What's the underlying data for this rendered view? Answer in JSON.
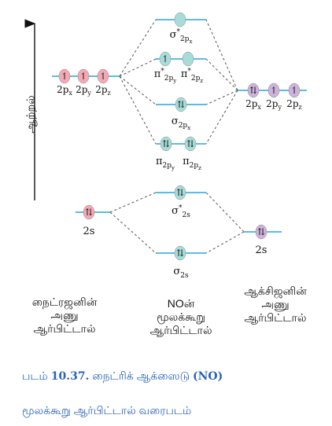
{
  "axis": {
    "label": "ஆற்றல்"
  },
  "nitrogen": {
    "title_lines": [
      "நைட்ரஜனின்",
      "அணு",
      "ஆர்பிட்டால்"
    ],
    "p_orbitals": [
      {
        "label": "2p",
        "sub": "x",
        "electrons": "↿"
      },
      {
        "label": "2p",
        "sub": "y",
        "electrons": "↿"
      },
      {
        "label": "2p",
        "sub": "z",
        "electrons": "↿"
      }
    ],
    "s_orbital": {
      "label": "2s",
      "electrons": "⇅"
    }
  },
  "oxygen": {
    "title_lines": [
      "ஆக்சிஜனின்",
      "அணு",
      "ஆர்பிட்டால்"
    ],
    "p_orbitals": [
      {
        "label": "2p",
        "sub": "x",
        "electrons": "⇅"
      },
      {
        "label": "2p",
        "sub": "y",
        "electrons": "↿"
      },
      {
        "label": "2p",
        "sub": "z",
        "electrons": "↿"
      }
    ],
    "s_orbital": {
      "label": "2s",
      "electrons": "⇅"
    }
  },
  "molecule": {
    "title_lines": [
      "NOன்",
      "மூலக்கூறு",
      "ஆர்பிட்டால்"
    ],
    "sigma_star_2px": {
      "symbol": "σ",
      "star": "*",
      "sub": "2p",
      "subsub": "x",
      "electrons": ""
    },
    "pi_star_2py": {
      "symbol": "π",
      "star": "*",
      "sub": "2p",
      "subsub": "y",
      "electrons": "↿"
    },
    "pi_star_2pz": {
      "symbol": "π",
      "star": "*",
      "sub": "2p",
      "subsub": "z",
      "electrons": ""
    },
    "sigma_2px": {
      "symbol": "σ",
      "star": "",
      "sub": "2p",
      "subsub": "x",
      "electrons": "⇅"
    },
    "pi_2py": {
      "symbol": "π",
      "star": "",
      "sub": "2p",
      "subsub": "y",
      "electrons": "⇅"
    },
    "pi_2pz": {
      "symbol": "π",
      "star": "",
      "sub": "2p",
      "subsub": "z",
      "electrons": "⇅"
    },
    "sigma_star_2s": {
      "symbol": "σ",
      "star": "*",
      "sub": "2s",
      "subsub": "",
      "electrons": "⇅"
    },
    "sigma_2s": {
      "symbol": "σ",
      "star": "",
      "sub": "2s",
      "subsub": "",
      "electrons": "⇅"
    }
  },
  "caption": {
    "prefix": "படம்",
    "number": "10.37.",
    "title": "நைட்ரிக் ஆக்ஸைடு",
    "formula": "(NO)",
    "line2": "மூலக்கூறு ஆர்பிட்டால் வரைபடம்"
  },
  "colors": {
    "nitrogen_orbital": "#f3a9b4",
    "oxygen_orbital": "#cdb2dc",
    "molecular_orbital": "#a8dcd8",
    "level_line": "#29a6d9",
    "caption": "#2b63b8"
  }
}
